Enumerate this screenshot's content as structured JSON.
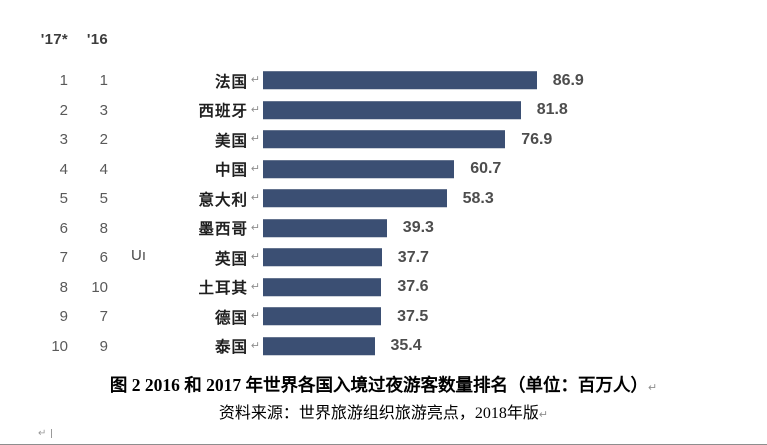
{
  "chart_data": {
    "type": "bar",
    "orientation": "horizontal",
    "title": "图 2  2016 和 2017 年世界各国入境过夜游客数量排名（单位：百万人）",
    "source": "资料来源：世界旅游组织旅游亮点，2018年版",
    "unit": "百万人",
    "bar_color": "#3b4f73",
    "xlim": [
      0,
      90
    ],
    "legend_position": "none",
    "grid": false,
    "rank_headers": {
      "y2017": "'17*",
      "y2016": "'16"
    },
    "categories": [
      "法国",
      "西班牙",
      "美国",
      "中国",
      "意大利",
      "墨西哥",
      "英国",
      "土耳其",
      "德国",
      "泰国"
    ],
    "values": [
      86.9,
      81.8,
      76.9,
      60.7,
      58.3,
      39.3,
      37.7,
      37.6,
      37.5,
      35.4
    ],
    "rows": [
      {
        "rank_2017": "1",
        "rank_2016": "1",
        "country": "法国",
        "value": "86.9",
        "stray": ""
      },
      {
        "rank_2017": "2",
        "rank_2016": "3",
        "country": "西班牙",
        "value": "81.8",
        "stray": ""
      },
      {
        "rank_2017": "3",
        "rank_2016": "2",
        "country": "美国",
        "value": "76.9",
        "stray": ""
      },
      {
        "rank_2017": "4",
        "rank_2016": "4",
        "country": "中国",
        "value": "60.7",
        "stray": ""
      },
      {
        "rank_2017": "5",
        "rank_2016": "5",
        "country": "意大利",
        "value": "58.3",
        "stray": ""
      },
      {
        "rank_2017": "6",
        "rank_2016": "8",
        "country": "墨西哥",
        "value": "39.3",
        "stray": ""
      },
      {
        "rank_2017": "7",
        "rank_2016": "6",
        "country": "英国",
        "value": "37.7",
        "stray": "Uı"
      },
      {
        "rank_2017": "8",
        "rank_2016": "10",
        "country": "土耳其",
        "value": "37.6",
        "stray": ""
      },
      {
        "rank_2017": "9",
        "rank_2016": "7",
        "country": "德国",
        "value": "37.5",
        "stray": ""
      },
      {
        "rank_2017": "10",
        "rank_2016": "9",
        "country": "泰国",
        "value": "35.4",
        "stray": ""
      }
    ]
  },
  "caption": {
    "line1": "图 2  2016 和 2017 年世界各国入境过夜游客数量排名（单位：百万人）",
    "line2": "资料来源：世界旅游组织旅游亮点，2018年版"
  },
  "marks": {
    "pilcrow": "↵",
    "cursor": "|"
  }
}
